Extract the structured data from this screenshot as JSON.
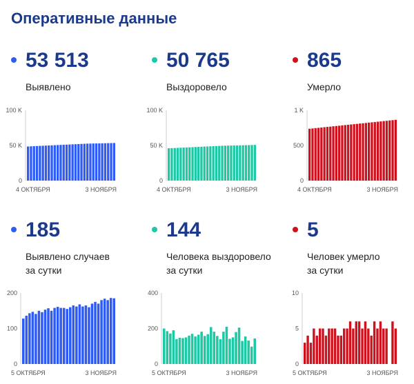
{
  "page": {
    "title": "Оперативные данные"
  },
  "colors": {
    "blue": "#2f5bf5",
    "green": "#1dc8a5",
    "red": "#d0101c",
    "title": "#1b3a8c"
  },
  "panels": [
    {
      "id": "detected",
      "value": "53 513",
      "label": [
        "Выявлено"
      ],
      "color": "#2f5bf5",
      "color_name": "blue",
      "chart_data": {
        "type": "bar",
        "series": [
          {
            "values": [
              48500,
              48800,
              49000,
              49200,
              49400,
              49600,
              49800,
              50000,
              50200,
              50400,
              50600,
              50800,
              51000,
              51200,
              51400,
              51600,
              51800,
              52000,
              52200,
              52400,
              52600,
              52700,
              52800,
              52900,
              53000,
              53100,
              53200,
              53300,
              53400,
              53513
            ]
          }
        ],
        "ylim": [
          0,
          100000
        ],
        "y_ticks": [
          "100 K",
          "50 K",
          "0"
        ],
        "y_tick_values": [
          100000,
          50000,
          0
        ],
        "x_ticks": [
          "4 ОКТЯБРЯ",
          "3 НОЯБРЯ"
        ]
      }
    },
    {
      "id": "recovered",
      "value": "50 765",
      "label": [
        "Выздоровело"
      ],
      "color": "#1dc8a5",
      "color_name": "green",
      "chart_data": {
        "type": "bar",
        "series": [
          {
            "values": [
              46000,
              46200,
              46400,
              46600,
              46800,
              47000,
              47200,
              47400,
              47600,
              47800,
              48000,
              48200,
              48400,
              48600,
              48800,
              49000,
              49200,
              49400,
              49600,
              49700,
              49800,
              49900,
              50000,
              50100,
              50200,
              50300,
              50400,
              50500,
              50600,
              50765
            ]
          }
        ],
        "ylim": [
          0,
          100000
        ],
        "y_ticks": [
          "100 K",
          "50 K",
          "0"
        ],
        "y_tick_values": [
          100000,
          50000,
          0
        ],
        "x_ticks": [
          "4 ОКТЯБРЯ",
          "3 НОЯБРЯ"
        ]
      }
    },
    {
      "id": "died",
      "value": "865",
      "label": [
        "Умерло"
      ],
      "color": "#d0101c",
      "color_name": "red",
      "chart_data": {
        "type": "bar",
        "series": [
          {
            "values": [
              738,
              742,
              747,
              751,
              755,
              760,
              764,
              768,
              773,
              777,
              781,
              786,
              790,
              794,
              799,
              803,
              807,
              812,
              816,
              820,
              825,
              829,
              833,
              838,
              842,
              847,
              851,
              856,
              860,
              865
            ]
          }
        ],
        "ylim": [
          0,
          1000
        ],
        "y_ticks": [
          "1 K",
          "500",
          "0"
        ],
        "y_tick_values": [
          1000,
          500,
          0
        ],
        "x_ticks": [
          "4 ОКТЯБРЯ",
          "3 НОЯБРЯ"
        ]
      }
    },
    {
      "id": "detected_daily",
      "value": "185",
      "label": [
        "Выявлено случаев",
        "за сутки"
      ],
      "color": "#2f5bf5",
      "color_name": "blue",
      "chart_data": {
        "type": "bar",
        "series": [
          {
            "values": [
              128,
              136,
              143,
              147,
              141,
              150,
              146,
              153,
              157,
              150,
              158,
              161,
              158,
              158,
              155,
              160,
              165,
              162,
              168,
              162,
              165,
              160,
              170,
              175,
              170,
              180,
              184,
              180,
              186,
              185
            ]
          }
        ],
        "ylim": [
          0,
          200
        ],
        "y_ticks": [
          "200",
          "100",
          "0"
        ],
        "y_tick_values": [
          200,
          100,
          0
        ],
        "x_ticks": [
          "5 ОКТЯБРЯ",
          "3 НОЯБРЯ"
        ]
      }
    },
    {
      "id": "recovered_daily",
      "value": "144",
      "label": [
        "Человека выздоровело",
        "за сутки"
      ],
      "color": "#1dc8a5",
      "color_name": "green",
      "chart_data": {
        "type": "bar",
        "series": [
          {
            "values": [
              200,
              185,
              172,
              190,
              140,
              148,
              146,
              150,
              160,
              170,
              155,
              165,
              182,
              158,
              168,
              208,
              182,
              158,
              140,
              182,
              210,
              142,
              150,
              180,
              205,
              130,
              155,
              132,
              98,
              144
            ]
          }
        ],
        "ylim": [
          0,
          400
        ],
        "y_ticks": [
          "400",
          "200",
          "0"
        ],
        "y_tick_values": [
          400,
          200,
          0
        ],
        "x_ticks": [
          "5 ОКТЯБРЯ",
          "3 НОЯБРЯ"
        ]
      }
    },
    {
      "id": "died_daily",
      "value": "5",
      "label": [
        "Человек умерло",
        "за сутки"
      ],
      "color": "#d0101c",
      "color_name": "red",
      "chart_data": {
        "type": "bar",
        "series": [
          {
            "values": [
              3,
              4,
              3,
              5,
              4,
              5,
              5,
              4,
              5,
              5,
              5,
              4,
              4,
              5,
              5,
              6,
              5,
              6,
              6,
              5,
              6,
              5,
              4,
              6,
              5,
              6,
              5,
              5,
              0,
              6,
              5
            ]
          }
        ],
        "ylim": [
          0,
          10
        ],
        "y_ticks": [
          "10",
          "5",
          "0"
        ],
        "y_tick_values": [
          10,
          5,
          0
        ],
        "x_ticks": [
          "5 ОКТЯБРЯ",
          "3 НОЯБРЯ"
        ]
      }
    }
  ]
}
